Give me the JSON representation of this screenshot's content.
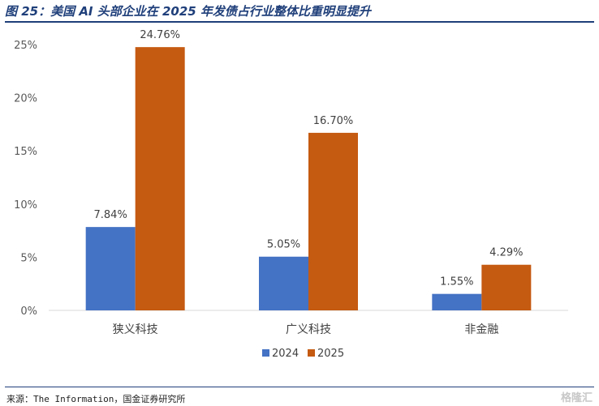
{
  "figure": {
    "title": "图 25：美国 AI 头部企业在 2025 年发债占行业整体比重明显提升",
    "source": "来源：The Information，国金证券研究所",
    "watermark": "格隆汇"
  },
  "chart_data": {
    "type": "bar",
    "title": "",
    "xlabel": "",
    "ylabel": "",
    "categories": [
      "狭义科技",
      "广义科技",
      "非金融"
    ],
    "series": [
      {
        "name": "2024",
        "values": [
          7.84,
          5.05,
          1.55
        ],
        "labels": [
          "7.84%",
          "5.05%",
          "1.55%"
        ],
        "color": "#4472c4"
      },
      {
        "name": "2025",
        "values": [
          24.76,
          16.7,
          4.29
        ],
        "labels": [
          "24.76%",
          "16.70%",
          "4.29%"
        ],
        "color": "#c55a11"
      }
    ],
    "ylim": [
      0,
      25
    ],
    "yticks": [
      0,
      5,
      10,
      15,
      20,
      25
    ],
    "ytick_labels": [
      "0%",
      "5%",
      "10%",
      "15%",
      "20%",
      "25%"
    ],
    "grid": false,
    "legend": "bottom-center"
  }
}
